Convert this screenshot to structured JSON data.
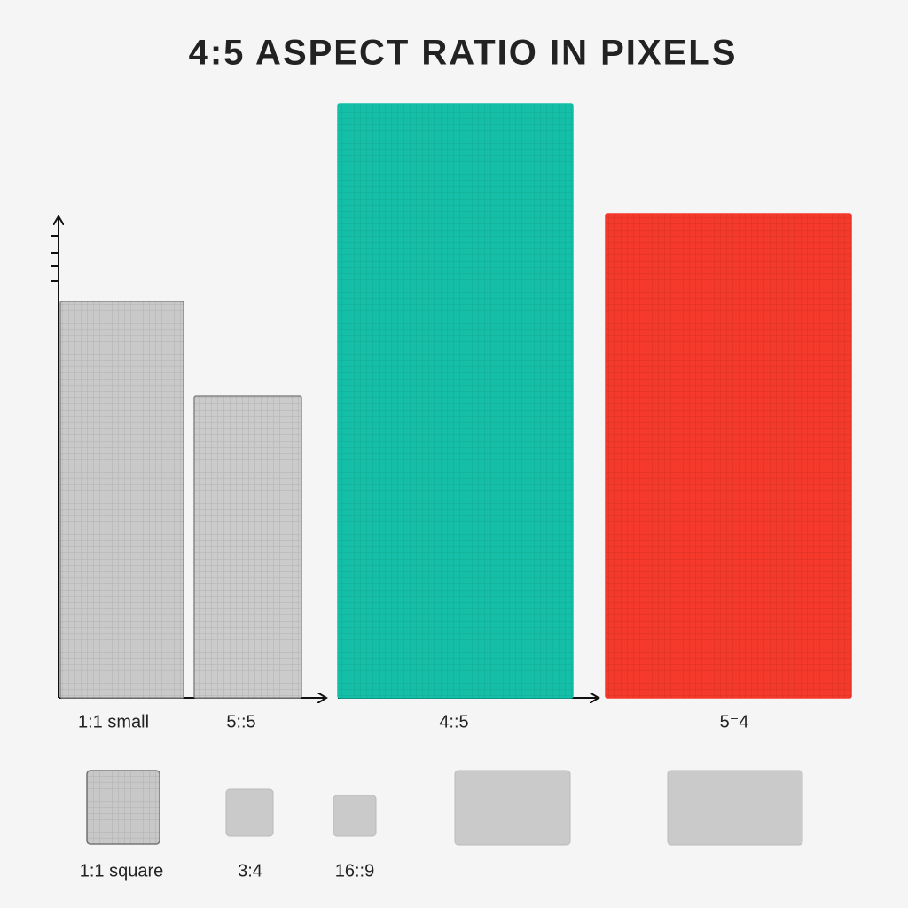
{
  "chart_data": {
    "type": "bar",
    "title": "4:5 ASPECT RATIO IN PIXELS",
    "categories": [
      "1:1 small",
      "5::5",
      "4::5",
      "5⁻4"
    ],
    "values": [
      447,
      340,
      670,
      546
    ],
    "colors": [
      "#c9c9c9",
      "#cbcbcb",
      "#15bfa7",
      "#f5392a"
    ],
    "ylim": [
      0,
      700
    ],
    "thumbnails": [
      "1:1 square",
      "3:4",
      "16::9",
      null,
      null
    ]
  }
}
